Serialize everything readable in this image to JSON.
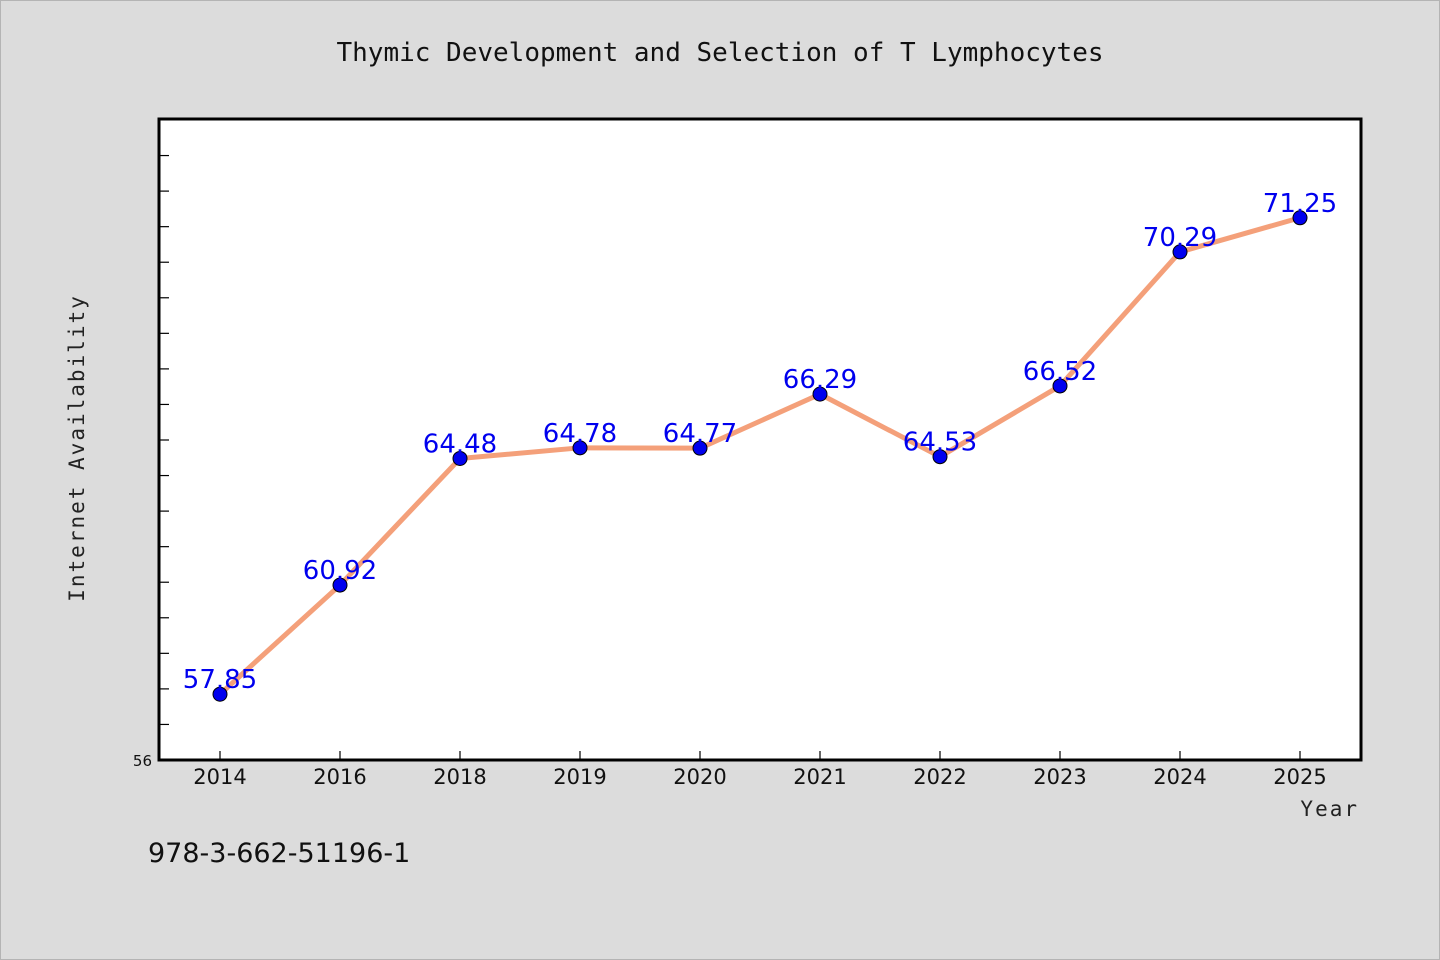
{
  "chart_data": {
    "type": "line",
    "title": "Thymic Development and Selection of T Lymphocytes",
    "xlabel": "Year",
    "ylabel": "Internet Availability",
    "categories": [
      "2014",
      "2016",
      "2018",
      "2019",
      "2020",
      "2021",
      "2022",
      "2023",
      "2024",
      "2025"
    ],
    "values": [
      57.85,
      60.92,
      64.48,
      64.78,
      64.77,
      66.29,
      64.53,
      66.52,
      70.29,
      71.25
    ],
    "ylim": [
      56,
      74
    ],
    "y_tick_labels": [
      "56"
    ],
    "y_minor_tick_step": 1,
    "grid": false,
    "legend": "none",
    "line_color": "#f4a07a",
    "marker_color": "#0000ee",
    "data_label_color": "#0000ee",
    "plot_background": "#ffffff",
    "figure_background": "#dcdcdc"
  },
  "footer": {
    "isbn": "978-3-662-51196-1"
  }
}
